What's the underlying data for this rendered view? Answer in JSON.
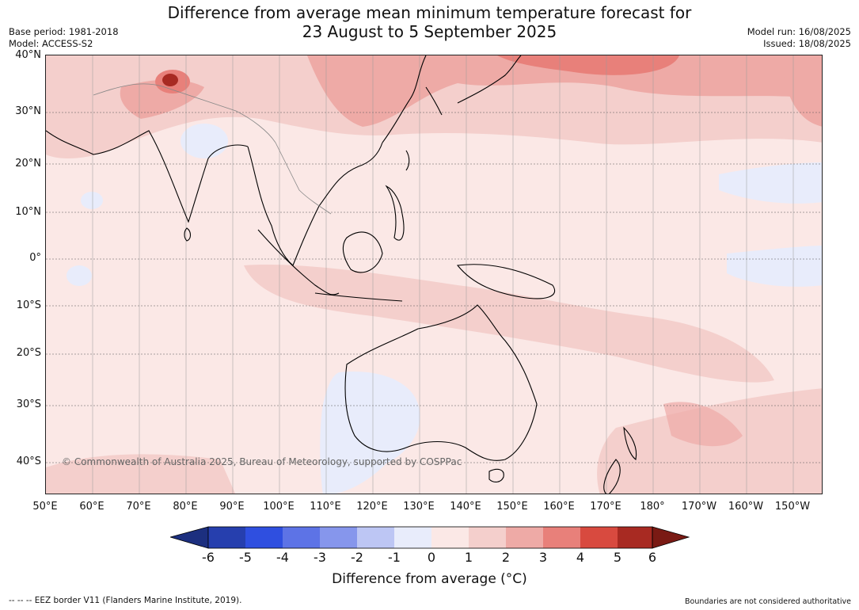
{
  "title_line1": "Difference from average mean minimum temperature forecast for",
  "title_line2": "23 August to 5 September 2025",
  "base_period": "Base period: 1981-2018",
  "model": "Model: ACCESS-S2",
  "model_run": "Model run: 16/08/2025",
  "issued": "Issued: 18/08/2025",
  "lat_labels": [
    "40°N",
    "30°N",
    "20°N",
    "10°N",
    "0°",
    "10°S",
    "20°S",
    "30°S",
    "40°S"
  ],
  "lon_labels": [
    "50°E",
    "60°E",
    "70°E",
    "80°E",
    "90°E",
    "100°E",
    "110°E",
    "120°E",
    "130°E",
    "140°E",
    "150°E",
    "160°E",
    "170°E",
    "180°",
    "170°W",
    "160°W",
    "150°W"
  ],
  "copyright": "© Commonwealth of Australia 2025, Bureau of Meteorology, supported by COSPPac",
  "colorbar": {
    "ticks": [
      "-6",
      "-5",
      "-4",
      "-3",
      "-2",
      "-1",
      "0",
      "1",
      "2",
      "3",
      "4",
      "5",
      "6"
    ],
    "colors": [
      "#1c2f7f",
      "#263fae",
      "#2f4fe0",
      "#5d73e6",
      "#8696ec",
      "#bdc6f4",
      "#e8ecfb",
      "#fbe8e6",
      "#f4cfcc",
      "#eeaaa6",
      "#e8807a",
      "#d84a3f",
      "#a82a22",
      "#7a1a14"
    ],
    "title": "Difference from average (°C)"
  },
  "footer_left": "--  --  -- EEZ border V11 (Flanders Marine Institute, 2019).",
  "footer_right": "Boundaries are not considered authoritative"
}
